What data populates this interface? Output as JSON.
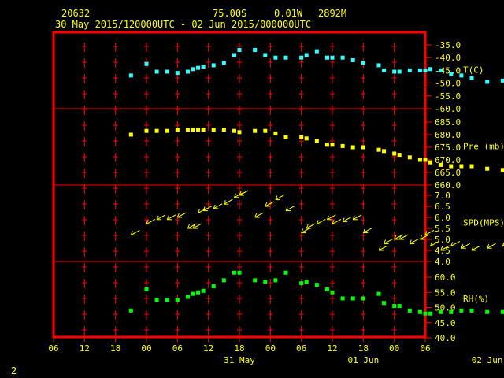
{
  "header": {
    "station_id": "20632",
    "lat": "75.00S",
    "lon": "0.01W",
    "elev": "2892M",
    "time_range": "30 May 2015/120000UTC - 02 Jun 2015/000000UTC"
  },
  "footer": {
    "page": "2"
  },
  "colors": {
    "frame": "#ff0000",
    "text": "#ffff00",
    "temp": "#33ffff",
    "pres": "#ffff00",
    "wind": "#ffff00",
    "rh": "#00ff00"
  },
  "chart_data": [
    {
      "type": "scatter",
      "xlabel": "",
      "ylabel": "T(C)",
      "ylim": [
        -60,
        -35
      ],
      "yticks": [
        "-35.0",
        "-40.0",
        "-45.0",
        "-50.0",
        "-55.0",
        "-60.0"
      ],
      "x": [
        15,
        18,
        20,
        22,
        24,
        26,
        27,
        28,
        29,
        31,
        33,
        35,
        36,
        39,
        41,
        43,
        45,
        48,
        49,
        51,
        53,
        54,
        56,
        58,
        60,
        63,
        64,
        66,
        67,
        69,
        71,
        72,
        73,
        75,
        77,
        79,
        81,
        84,
        87,
        89,
        91
      ],
      "values": [
        -47.0,
        -42.5,
        -45.5,
        -45.5,
        -46.0,
        -45.5,
        -44.5,
        -44.0,
        -43.5,
        -43.0,
        -42.0,
        -39.0,
        -37.0,
        -37.0,
        -39.0,
        -40.0,
        -40.0,
        -40.0,
        -39.0,
        -37.5,
        -40.0,
        -40.0,
        -40.0,
        -41.0,
        -42.0,
        -43.0,
        -45.0,
        -45.5,
        -45.5,
        -45.0,
        -45.0,
        -45.0,
        -44.5,
        -45.0,
        -46.5,
        -47.0,
        -48.0,
        -49.5,
        -49.0,
        -49.0,
        -49.0
      ]
    },
    {
      "type": "scatter",
      "ylabel": "Pre (mb)",
      "ylim": [
        660,
        685
      ],
      "yticks": [
        "685.0",
        "680.0",
        "675.0",
        "670.0",
        "665.0",
        "660.0"
      ],
      "x": [
        15,
        18,
        20,
        22,
        24,
        26,
        27,
        28,
        29,
        31,
        33,
        35,
        36,
        39,
        41,
        43,
        45,
        48,
        49,
        51,
        53,
        54,
        56,
        58,
        60,
        63,
        64,
        66,
        67,
        69,
        71,
        72,
        73,
        75,
        77,
        79,
        81,
        84,
        87,
        89,
        91
      ],
      "values": [
        680.0,
        681.5,
        681.5,
        681.5,
        682.0,
        682.0,
        682.0,
        682.0,
        682.0,
        682.0,
        682.0,
        681.5,
        681.0,
        681.5,
        681.5,
        680.5,
        679.0,
        679.0,
        678.5,
        677.5,
        676.0,
        676.0,
        675.5,
        675.0,
        675.0,
        674.0,
        673.5,
        672.5,
        672.0,
        671.0,
        670.0,
        670.0,
        669.0,
        668.0,
        667.5,
        667.5,
        667.5,
        666.5,
        666.0,
        666.0,
        666.0
      ]
    },
    {
      "type": "scatter",
      "ylabel": "SPD(MPS)",
      "ylim": [
        4.0,
        7.5
      ],
      "yticks": [
        "7.0",
        "6.5",
        "6.0",
        "5.5",
        "5.0",
        "4.5",
        "4.0"
      ],
      "x": [
        15,
        18,
        20,
        22,
        24,
        26,
        27,
        28,
        29,
        31,
        33,
        35,
        36,
        39,
        41,
        43,
        45,
        48,
        49,
        51,
        53,
        54,
        56,
        58,
        60,
        63,
        64,
        66,
        67,
        69,
        71,
        72,
        73,
        75,
        77,
        79,
        81,
        84,
        87,
        89,
        91
      ],
      "values": [
        5.2,
        5.7,
        5.9,
        5.9,
        6.0,
        5.5,
        5.5,
        6.2,
        6.3,
        6.4,
        6.6,
        6.9,
        7.0,
        6.0,
        6.5,
        6.8,
        6.3,
        5.3,
        5.5,
        5.7,
        5.9,
        5.7,
        5.8,
        5.9,
        5.3,
        4.5,
        4.8,
        5.0,
        5.0,
        4.8,
        5.0,
        5.2,
        4.7,
        4.5,
        4.7,
        4.6,
        4.5,
        4.6,
        4.7,
        4.7,
        4.7
      ]
    },
    {
      "type": "scatter",
      "ylabel": "RH(%)",
      "ylim": [
        40,
        62.5
      ],
      "yticks": [
        "60.0",
        "55.0",
        "50.0",
        "45.0",
        "40.0"
      ],
      "x": [
        15,
        18,
        20,
        22,
        24,
        26,
        27,
        28,
        29,
        31,
        33,
        35,
        36,
        39,
        41,
        43,
        45,
        48,
        49,
        51,
        53,
        54,
        56,
        58,
        60,
        63,
        64,
        66,
        67,
        69,
        71,
        72,
        73,
        75,
        77,
        79,
        81,
        84,
        87,
        89,
        91
      ],
      "values": [
        49.0,
        56.0,
        52.5,
        52.5,
        52.5,
        53.5,
        54.5,
        55.0,
        55.5,
        57.0,
        59.0,
        61.5,
        61.5,
        59.0,
        58.5,
        59.0,
        61.5,
        58.0,
        58.5,
        57.5,
        56.0,
        55.0,
        53.0,
        53.0,
        53.0,
        54.5,
        51.5,
        50.5,
        50.5,
        49.0,
        48.5,
        48.0,
        48.0,
        48.5,
        48.5,
        49.0,
        49.0,
        48.5,
        48.5,
        48.5,
        49.0
      ]
    }
  ],
  "x_axis": {
    "tick_labels": [
      "06",
      "12",
      "18",
      "00",
      "06",
      "12",
      "18",
      "00",
      "06",
      "12",
      "18",
      "00",
      "06"
    ],
    "date_labels": [
      {
        "text": "31 May",
        "at": 36
      },
      {
        "text": "01 Jun",
        "at": 60
      },
      {
        "text": "02 Jun",
        "at": 84
      }
    ]
  }
}
